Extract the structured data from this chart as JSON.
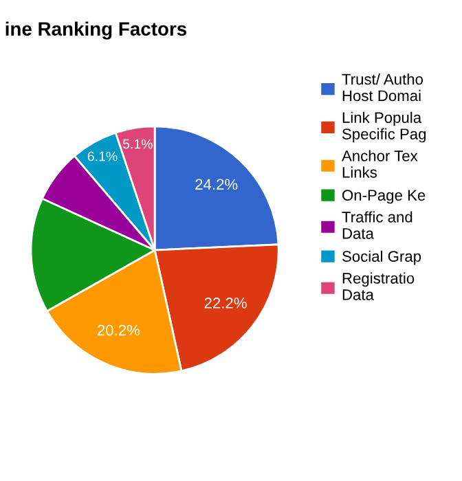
{
  "chart_data": {
    "type": "pie",
    "title": "ine Ranking Factors",
    "categories": [
      "Trust/ Autho\nHost Domai",
      "Link Popula\nSpecific Pag",
      "Anchor Tex\nLinks",
      "On-Page Ke",
      "Traffic and\nData",
      "Social Grap",
      "Registratio\nData"
    ],
    "values": [
      24.2,
      22.2,
      20.2,
      15.0,
      6.9,
      6.1,
      5.1
    ],
    "colors": [
      "#3366cc",
      "#dc3912",
      "#ff9900",
      "#109618",
      "#990099",
      "#0099c6",
      "#dd4477"
    ],
    "value_labels": [
      "24.2%",
      "22.2%",
      "20.2%",
      null,
      null,
      "6.1%",
      "5.1%"
    ],
    "legend": "right"
  }
}
